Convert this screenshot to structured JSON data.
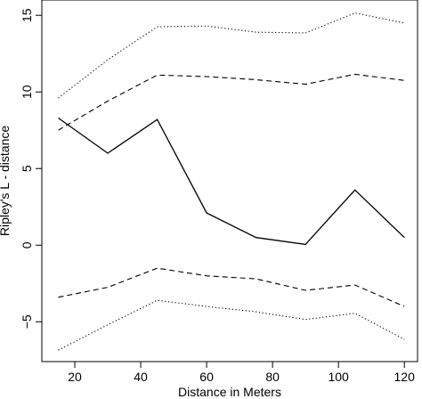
{
  "chart_data": {
    "type": "line",
    "title": "",
    "xlabel": "Distance in Meters",
    "ylabel": "Ripley's L - distance",
    "xlim": [
      10,
      124
    ],
    "ylim": [
      -7.6,
      16.0
    ],
    "xticks": [
      20,
      40,
      60,
      80,
      100,
      120
    ],
    "yticks": [
      -5,
      0,
      5,
      10,
      15
    ],
    "grid": false,
    "x": [
      15,
      30,
      45,
      60,
      75,
      90,
      105,
      120
    ],
    "series": [
      {
        "style": "solid",
        "color": "#000000",
        "values": [
          8.3,
          6.0,
          8.2,
          2.1,
          0.5,
          0.05,
          3.6,
          0.5
        ]
      },
      {
        "style": "dashed",
        "color": "#000000",
        "values": [
          7.5,
          9.4,
          11.1,
          11.0,
          10.8,
          10.5,
          11.15,
          10.75
        ]
      },
      {
        "style": "dotted",
        "color": "#000000",
        "values": [
          9.6,
          12.1,
          14.25,
          14.3,
          13.9,
          13.85,
          15.15,
          14.5
        ]
      },
      {
        "style": "dashed",
        "color": "#000000",
        "values": [
          -3.4,
          -2.75,
          -1.5,
          -2.0,
          -2.2,
          -2.95,
          -2.6,
          -4.0
        ]
      },
      {
        "style": "dotted",
        "color": "#000000",
        "values": [
          -6.85,
          -5.2,
          -3.6,
          -4.0,
          -4.35,
          -4.85,
          -4.45,
          -6.15
        ]
      }
    ]
  }
}
